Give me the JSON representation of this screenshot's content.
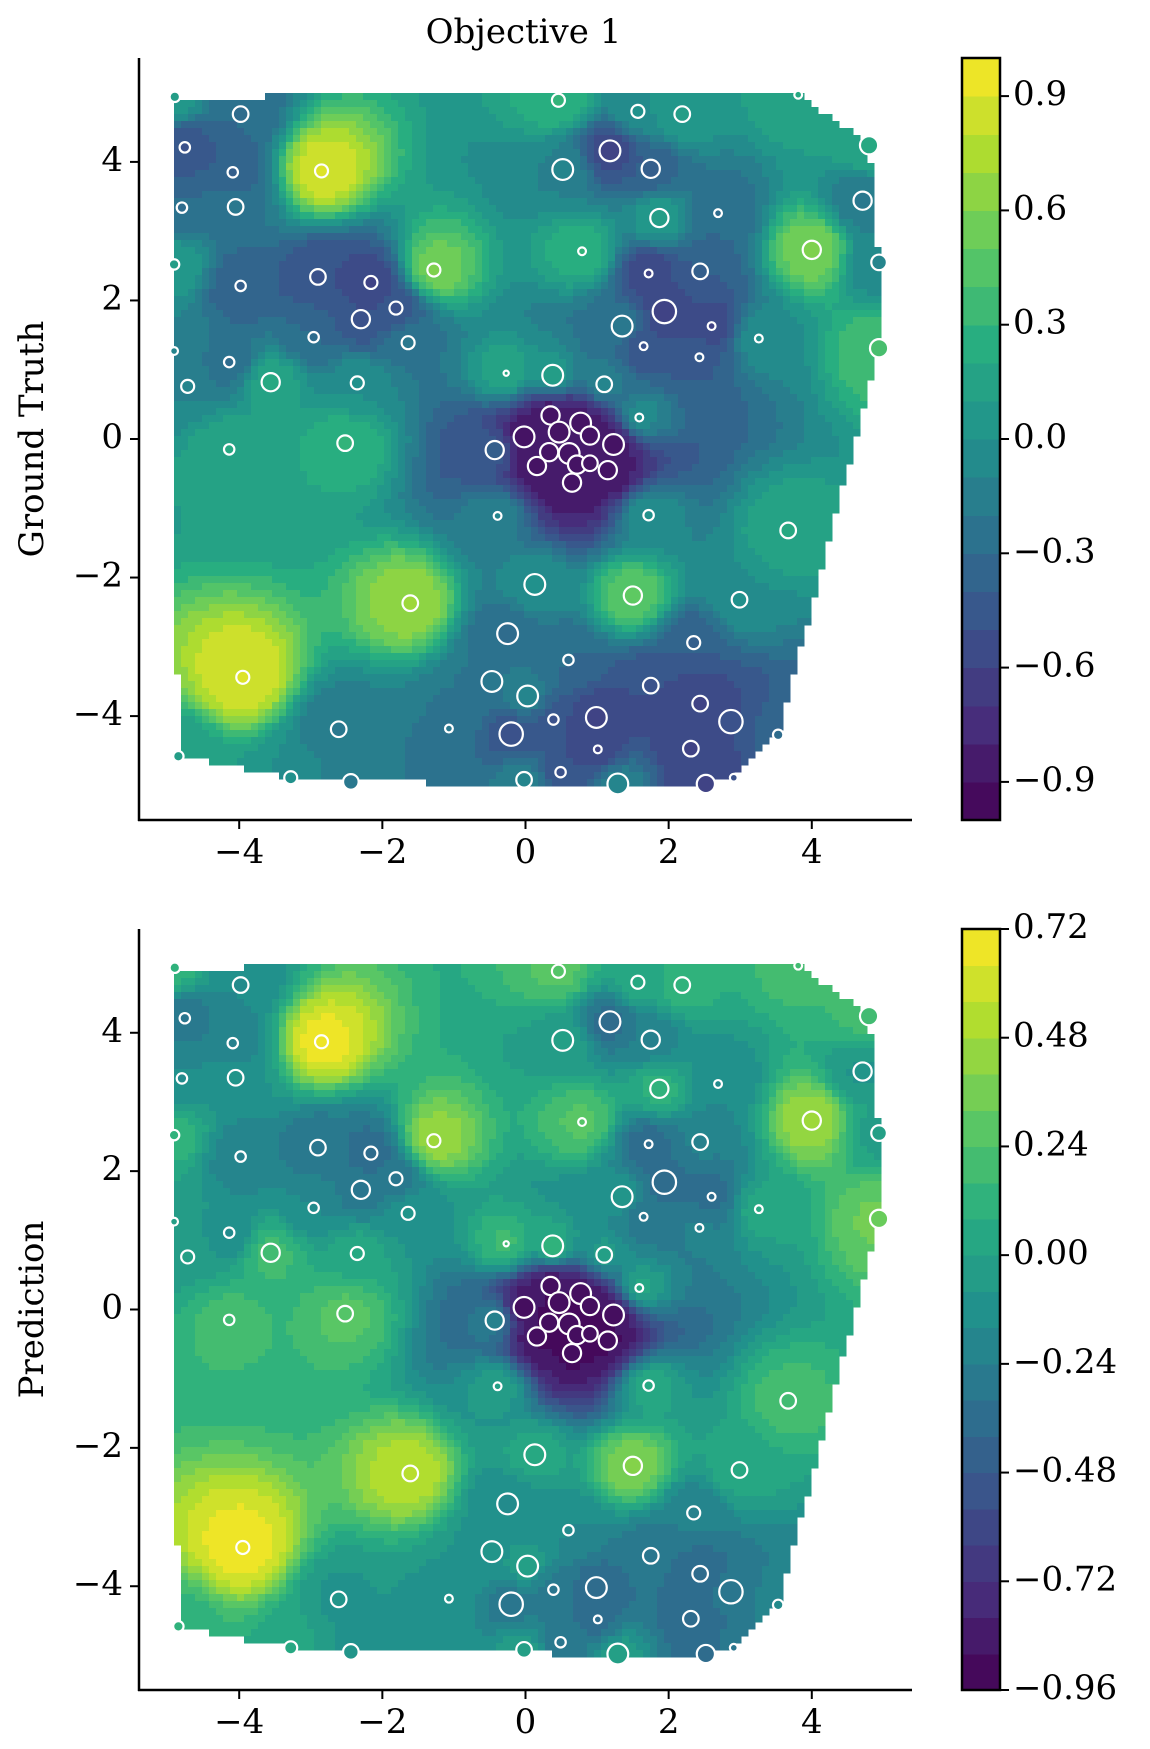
{
  "chart_data": [
    {
      "type": "contour",
      "title": "Objective 1",
      "ylabel": "Ground Truth",
      "colormap": "viridis",
      "color_levels": 20,
      "xlim": [
        -5.4,
        5.4
      ],
      "ylim": [
        -5.5,
        5.5
      ],
      "xticks": [
        {
          "value": -4,
          "label": "−4"
        },
        {
          "value": -2,
          "label": "−2"
        },
        0,
        2,
        4
      ],
      "yticks": [
        {
          "value": -4,
          "label": "−4"
        },
        {
          "value": -2,
          "label": "−2"
        },
        0,
        2,
        4
      ],
      "clim": [
        -1,
        1
      ],
      "cticks": [
        {
          "value": -0.9,
          "label": "−0.9"
        },
        {
          "value": -0.6,
          "label": "−0.6"
        },
        {
          "value": -0.3,
          "label": "−0.3"
        },
        {
          "value": 0,
          "label": "0.0"
        },
        0.3,
        0.6,
        0.9
      ],
      "x": [
        -4.9,
        -3.98,
        -4.76,
        -4.09,
        -2.85,
        -4.8,
        -4.05,
        -4.91,
        -3.98,
        -2.9,
        -2.16,
        -1.28,
        -1.81,
        -2.3,
        -2.96,
        -1.64,
        -4.91,
        -4.14,
        -4.72,
        -3.56,
        -2.35,
        -2.52,
        -4.14,
        0.46,
        1.57,
        2.19,
        0.52,
        1.18,
        1.75,
        1.87,
        2.69,
        3.81,
        4.8,
        4.71,
        4.0,
        4.94,
        0.79,
        1.72,
        2.44,
        1.35,
        1.94,
        2.6,
        1.65,
        2.43,
        3.26,
        4.94,
        -0.27,
        0.38,
        1.1,
        1.59,
        -0.02,
        0.35,
        0.47,
        0.77,
        0.9,
        0.61,
        0.33,
        0.16,
        0.72,
        0.9,
        1.15,
        1.23,
        0.65,
        -0.43,
        -0.39,
        1.72,
        3.67,
        0.13,
        -1.61,
        1.5,
        2.99,
        -0.25,
        2.35,
        0.6,
        -3.95,
        -0.47,
        1.75,
        0.03,
        2.44,
        0.99,
        0.39,
        2.87,
        -1.07,
        -2.61,
        -0.2,
        3.53,
        2.31,
        1.01,
        -4.85,
        -3.28,
        -2.44,
        -0.02,
        0.49,
        1.29,
        2.52,
        2.91
      ],
      "y": [
        4.94,
        4.69,
        4.21,
        3.85,
        3.87,
        3.34,
        3.35,
        2.52,
        2.21,
        2.34,
        2.26,
        2.44,
        1.89,
        1.73,
        1.47,
        1.39,
        1.27,
        1.11,
        0.76,
        0.82,
        0.81,
        -0.06,
        -0.15,
        4.89,
        4.73,
        4.69,
        3.89,
        4.16,
        3.9,
        3.19,
        3.26,
        4.97,
        4.24,
        3.44,
        2.73,
        2.55,
        2.71,
        2.39,
        2.42,
        1.63,
        1.84,
        1.63,
        1.34,
        1.18,
        1.45,
        1.31,
        0.95,
        0.92,
        0.79,
        0.31,
        0.03,
        0.34,
        0.1,
        0.23,
        0.05,
        -0.21,
        -0.19,
        -0.39,
        -0.37,
        -0.35,
        -0.45,
        -0.08,
        -0.63,
        -0.16,
        -1.11,
        -1.1,
        -1.32,
        -2.1,
        -2.37,
        -2.26,
        -2.32,
        -2.81,
        -2.94,
        -3.19,
        -3.44,
        -3.5,
        -3.56,
        -3.71,
        -3.82,
        -4.02,
        -4.05,
        -4.08,
        -4.18,
        -4.19,
        -4.26,
        -4.27,
        -4.47,
        -4.48,
        -4.58,
        -4.89,
        -4.95,
        -4.92,
        -4.81,
        -4.98,
        -4.98,
        -4.89
      ],
      "sizes": [
        4,
        6,
        4,
        4,
        5,
        4,
        6,
        4,
        4,
        6,
        5,
        5,
        5,
        7,
        4,
        5,
        3,
        4,
        5,
        7,
        5,
        6,
        4,
        5,
        5,
        6,
        8,
        8,
        7,
        7,
        3,
        3,
        7,
        7,
        7,
        6,
        3,
        3,
        6,
        8,
        9,
        3,
        3,
        3,
        3,
        7,
        2,
        8,
        6,
        3,
        8,
        7,
        8,
        8,
        7,
        8,
        7,
        7,
        7,
        6,
        7,
        8,
        7,
        7,
        3,
        4,
        6,
        8,
        6,
        7,
        6,
        8,
        5,
        4,
        5,
        8,
        6,
        8,
        6,
        8,
        4,
        9,
        3,
        6,
        9,
        4,
        6,
        3,
        4,
        5,
        6,
        6,
        4,
        8,
        7,
        3
      ],
      "values": [
        0.1,
        -0.3,
        -0.5,
        -0.4,
        0.9,
        -0.3,
        -0.2,
        0.1,
        -0.4,
        -0.5,
        -0.6,
        0.6,
        -0.5,
        -0.5,
        -0.3,
        -0.2,
        -0.1,
        -0.3,
        -0.1,
        0.2,
        0.0,
        0.3,
        0.2,
        0.3,
        0.0,
        0.1,
        -0.1,
        -0.6,
        -0.4,
        0.1,
        -0.3,
        0.2,
        0.2,
        -0.2,
        0.6,
        -0.1,
        0.3,
        -0.6,
        -0.4,
        -0.2,
        -0.6,
        -0.6,
        -0.5,
        -0.4,
        0.0,
        0.4,
        0.2,
        0.1,
        -0.1,
        0.0,
        -0.9,
        -0.9,
        -0.9,
        -0.9,
        -0.9,
        -0.9,
        -0.9,
        -0.9,
        -0.9,
        -0.9,
        -0.9,
        -0.9,
        -0.9,
        -0.4,
        -0.1,
        0.0,
        0.2,
        0.0,
        0.7,
        0.5,
        0.0,
        -0.3,
        -0.4,
        -0.3,
        0.9,
        -0.2,
        -0.5,
        -0.1,
        -0.6,
        -0.6,
        -0.5,
        -0.5,
        -0.2,
        -0.2,
        -0.5,
        -0.3,
        -0.6,
        -0.6,
        0.1,
        0.0,
        -0.2,
        -0.1,
        -0.5,
        -0.1,
        -0.6,
        -0.5
      ]
    },
    {
      "type": "contour",
      "ylabel": "Prediction",
      "colormap": "viridis",
      "color_levels": 21,
      "xlim": [
        -5.4,
        5.4
      ],
      "ylim": [
        -5.5,
        5.5
      ],
      "xticks": [
        {
          "value": -4,
          "label": "−4"
        },
        {
          "value": -2,
          "label": "−2"
        },
        0,
        2,
        4
      ],
      "yticks": [
        {
          "value": -4,
          "label": "−4"
        },
        {
          "value": -2,
          "label": "−2"
        },
        0,
        2,
        4
      ],
      "clim": [
        -0.96,
        0.72
      ],
      "cticks": [
        {
          "value": -0.96,
          "label": "−0.96"
        },
        {
          "value": -0.72,
          "label": "−0.72"
        },
        {
          "value": -0.48,
          "label": "−0.48"
        },
        {
          "value": -0.24,
          "label": "−0.24"
        },
        {
          "value": 0,
          "label": "0.00"
        },
        0.24,
        0.48,
        0.72
      ],
      "x": [
        -4.9,
        -3.98,
        -4.76,
        -4.09,
        -2.85,
        -4.8,
        -4.05,
        -4.91,
        -3.98,
        -2.9,
        -2.16,
        -1.28,
        -1.81,
        -2.3,
        -2.96,
        -1.64,
        -4.91,
        -4.14,
        -4.72,
        -3.56,
        -2.35,
        -2.52,
        -4.14,
        0.46,
        1.57,
        2.19,
        0.52,
        1.18,
        1.75,
        1.87,
        2.69,
        3.81,
        4.8,
        4.71,
        4.0,
        4.94,
        0.79,
        1.72,
        2.44,
        1.35,
        1.94,
        2.6,
        1.65,
        2.43,
        3.26,
        4.94,
        -0.27,
        0.38,
        1.1,
        1.59,
        -0.02,
        0.35,
        0.47,
        0.77,
        0.9,
        0.61,
        0.33,
        0.16,
        0.72,
        0.9,
        1.15,
        1.23,
        0.65,
        -0.43,
        -0.39,
        1.72,
        3.67,
        0.13,
        -1.61,
        1.5,
        2.99,
        -0.25,
        2.35,
        0.6,
        -3.95,
        -0.47,
        1.75,
        0.03,
        2.44,
        0.99,
        0.39,
        2.87,
        -1.07,
        -2.61,
        -0.2,
        3.53,
        2.31,
        1.01,
        -4.85,
        -3.28,
        -2.44,
        -0.02,
        0.49,
        1.29,
        2.52,
        2.91
      ],
      "y": [
        4.94,
        4.69,
        4.21,
        3.85,
        3.87,
        3.34,
        3.35,
        2.52,
        2.21,
        2.34,
        2.26,
        2.44,
        1.89,
        1.73,
        1.47,
        1.39,
        1.27,
        1.11,
        0.76,
        0.82,
        0.81,
        -0.06,
        -0.15,
        4.89,
        4.73,
        4.69,
        3.89,
        4.16,
        3.9,
        3.19,
        3.26,
        4.97,
        4.24,
        3.44,
        2.73,
        2.55,
        2.71,
        2.39,
        2.42,
        1.63,
        1.84,
        1.63,
        1.34,
        1.18,
        1.45,
        1.31,
        0.95,
        0.92,
        0.79,
        0.31,
        0.03,
        0.34,
        0.1,
        0.23,
        0.05,
        -0.21,
        -0.19,
        -0.39,
        -0.37,
        -0.35,
        -0.45,
        -0.08,
        -0.63,
        -0.16,
        -1.11,
        -1.1,
        -1.32,
        -2.1,
        -2.37,
        -2.26,
        -2.32,
        -2.81,
        -2.94,
        -3.19,
        -3.44,
        -3.5,
        -3.56,
        -3.71,
        -3.82,
        -4.02,
        -4.05,
        -4.08,
        -4.18,
        -4.19,
        -4.26,
        -4.27,
        -4.47,
        -4.48,
        -4.58,
        -4.89,
        -4.95,
        -4.92,
        -4.81,
        -4.98,
        -4.98,
        -4.89
      ],
      "sizes": [
        4,
        6,
        4,
        4,
        5,
        4,
        6,
        4,
        4,
        6,
        5,
        5,
        5,
        7,
        4,
        5,
        3,
        4,
        5,
        7,
        5,
        6,
        4,
        5,
        5,
        6,
        8,
        8,
        7,
        7,
        3,
        3,
        7,
        7,
        7,
        6,
        3,
        3,
        6,
        8,
        9,
        3,
        3,
        3,
        3,
        7,
        2,
        8,
        6,
        3,
        8,
        7,
        8,
        8,
        7,
        8,
        7,
        7,
        7,
        6,
        7,
        8,
        7,
        7,
        3,
        4,
        6,
        8,
        6,
        7,
        6,
        8,
        5,
        4,
        5,
        8,
        6,
        8,
        6,
        8,
        4,
        9,
        3,
        6,
        9,
        4,
        6,
        3,
        4,
        5,
        6,
        6,
        4,
        8,
        7,
        3
      ],
      "values": [
        0.12,
        -0.16,
        -0.3,
        -0.23,
        0.68,
        -0.16,
        -0.09,
        0.12,
        -0.23,
        -0.3,
        -0.37,
        0.47,
        -0.3,
        -0.3,
        -0.16,
        -0.09,
        -0.02,
        -0.16,
        -0.02,
        0.19,
        0.05,
        0.26,
        0.19,
        0.26,
        0.05,
        0.12,
        -0.02,
        -0.37,
        -0.23,
        0.12,
        -0.16,
        0.19,
        0.19,
        -0.09,
        0.47,
        -0.02,
        0.26,
        -0.37,
        -0.23,
        -0.09,
        -0.37,
        -0.37,
        -0.3,
        -0.23,
        0.05,
        0.33,
        0.19,
        0.12,
        -0.02,
        0.05,
        -0.9,
        -0.9,
        -0.9,
        -0.9,
        -0.9,
        -0.9,
        -0.9,
        -0.9,
        -0.9,
        -0.9,
        -0.9,
        -0.9,
        -0.9,
        -0.23,
        -0.02,
        0.05,
        0.19,
        0.05,
        0.54,
        0.4,
        0.05,
        -0.16,
        -0.23,
        -0.16,
        0.68,
        -0.09,
        -0.3,
        -0.02,
        -0.37,
        -0.37,
        -0.3,
        -0.3,
        -0.09,
        -0.09,
        -0.3,
        -0.16,
        -0.37,
        -0.37,
        0.12,
        0.05,
        -0.09,
        -0.02,
        -0.3,
        -0.02,
        -0.37,
        -0.3
      ]
    }
  ]
}
